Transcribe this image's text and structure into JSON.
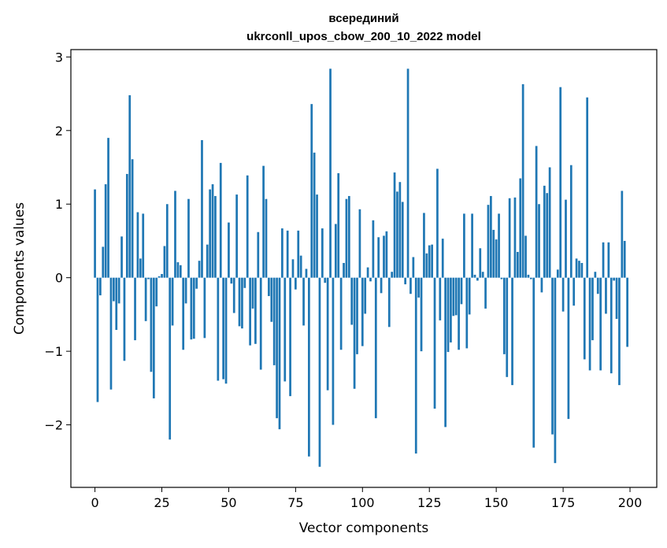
{
  "chart_data": {
    "type": "bar",
    "title_line1": "всерединий",
    "title_line2": "ukrconll_upos_cbow_200_10_2022 model",
    "xlabel": "Vector components",
    "ylabel": "Components values",
    "xlim": [
      -9,
      210
    ],
    "ylim": [
      -2.85,
      3.1
    ],
    "xticks": [
      0,
      25,
      50,
      75,
      100,
      125,
      150,
      175,
      200
    ],
    "yticks": [
      -2,
      -1,
      0,
      1,
      2,
      3
    ],
    "ytick_labels": [
      "−2",
      "−1",
      "0",
      "1",
      "2",
      "3"
    ],
    "bar_color": "#1f77b4",
    "values": [
      1.2,
      -1.69,
      -0.24,
      0.42,
      1.27,
      1.9,
      -1.52,
      -0.32,
      -0.71,
      -0.35,
      0.56,
      -1.13,
      1.41,
      2.48,
      1.61,
      -0.85,
      0.89,
      0.26,
      0.87,
      -0.59,
      -0.02,
      -1.28,
      -1.64,
      -0.39,
      0.02,
      0.05,
      0.43,
      1.0,
      -2.2,
      -0.65,
      1.18,
      0.21,
      0.17,
      -0.98,
      -0.35,
      1.07,
      -0.84,
      -0.83,
      -0.15,
      0.23,
      1.87,
      -0.82,
      0.45,
      1.2,
      1.27,
      1.11,
      -1.4,
      1.56,
      -1.38,
      -1.44,
      0.75,
      -0.08,
      -0.48,
      1.13,
      -0.66,
      -0.69,
      -0.14,
      1.39,
      -0.92,
      -0.42,
      -0.9,
      0.62,
      -1.25,
      1.52,
      1.07,
      -0.25,
      -0.6,
      -1.19,
      -1.91,
      -2.06,
      0.67,
      -1.41,
      0.64,
      -1.61,
      0.25,
      -0.16,
      0.64,
      0.3,
      -0.65,
      0.12,
      -2.43,
      2.36,
      1.7,
      1.13,
      -2.57,
      0.67,
      -0.07,
      -1.53,
      2.84,
      -2.0,
      0.73,
      1.42,
      -0.98,
      0.2,
      1.07,
      1.11,
      -0.64,
      -1.51,
      -1.04,
      0.93,
      -0.93,
      -0.49,
      0.14,
      -0.05,
      0.78,
      -1.91,
      0.55,
      -0.21,
      0.57,
      0.63,
      -0.67,
      0.08,
      1.43,
      1.17,
      1.3,
      1.03,
      -0.09,
      2.84,
      -0.22,
      0.28,
      -2.39,
      -0.27,
      -1.0,
      0.88,
      0.33,
      0.44,
      0.45,
      -1.78,
      1.48,
      -0.58,
      0.53,
      -2.03,
      -1.01,
      -0.88,
      -0.52,
      -0.51,
      -0.98,
      -0.36,
      0.87,
      -0.96,
      -0.5,
      0.87,
      0.04,
      -0.04,
      0.4,
      0.08,
      -0.42,
      0.99,
      1.11,
      0.65,
      0.52,
      0.87,
      -0.02,
      -1.04,
      -1.35,
      1.08,
      -1.46,
      1.09,
      0.35,
      1.35,
      2.63,
      0.57,
      0.04,
      -0.02,
      -2.31,
      1.79,
      1.0,
      -0.2,
      1.25,
      1.15,
      1.5,
      -2.13,
      -2.52,
      0.11,
      2.59,
      -0.46,
      1.06,
      -1.92,
      1.53,
      -0.38,
      0.26,
      0.23,
      0.2,
      -1.11,
      2.45,
      -1.26,
      -0.85,
      0.08,
      -0.22,
      -1.26,
      0.48,
      -0.49,
      0.48,
      -1.3,
      -0.04,
      -0.56,
      -1.46,
      1.18,
      0.5,
      -0.94
    ]
  }
}
